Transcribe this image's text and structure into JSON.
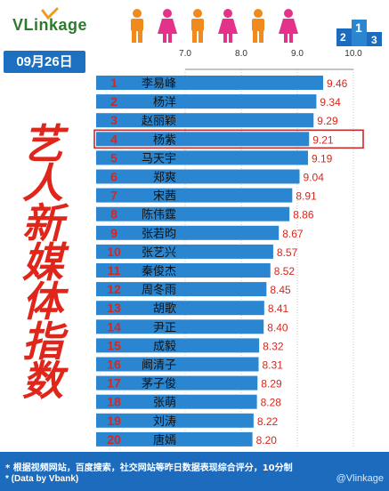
{
  "brand": {
    "logo_text": "VLinkage"
  },
  "date_label": "09月26日",
  "side_title_chars": [
    "艺",
    "人",
    "新",
    "媒",
    "体",
    "指",
    "数"
  ],
  "footer": {
    "note_line1": "* 根据视频网站，百度搜索，社交网站等昨日数据表现综合评分，10分制",
    "note_line2": "* (Data by Vbank)",
    "watermark": "@Vlinkage"
  },
  "colors": {
    "bar": "#2a86d0",
    "rank": "#d9261c",
    "value": "#d9261c",
    "highlight_box": "#cc2a2a",
    "footer_bg": "#1d6bbd",
    "title": "#e0251b"
  },
  "chart_data": {
    "type": "bar",
    "orientation": "horizontal",
    "x_ticks": [
      "7.0",
      "8.0",
      "9.0",
      "10.0"
    ],
    "xlim": [
      7.0,
      10.0
    ],
    "highlight_rank": 4,
    "rows": [
      {
        "rank": "1",
        "name": "李易峰",
        "value": 9.46,
        "label": "9.46"
      },
      {
        "rank": "2",
        "name": "杨洋",
        "value": 9.34,
        "label": "9.34"
      },
      {
        "rank": "3",
        "name": "赵丽颖",
        "value": 9.29,
        "label": "9.29"
      },
      {
        "rank": "4",
        "name": "杨紫",
        "value": 9.21,
        "label": "9.21"
      },
      {
        "rank": "5",
        "name": "马天宇",
        "value": 9.19,
        "label": "9.19"
      },
      {
        "rank": "6",
        "name": "郑爽",
        "value": 9.04,
        "label": "9.04"
      },
      {
        "rank": "7",
        "name": "宋茜",
        "value": 8.91,
        "label": "8.91"
      },
      {
        "rank": "8",
        "name": "陈伟霆",
        "value": 8.86,
        "label": "8.86"
      },
      {
        "rank": "9",
        "name": "张若昀",
        "value": 8.67,
        "label": "8.67"
      },
      {
        "rank": "10",
        "name": "张艺兴",
        "value": 8.57,
        "label": "8.57"
      },
      {
        "rank": "11",
        "name": "秦俊杰",
        "value": 8.52,
        "label": "8.52"
      },
      {
        "rank": "12",
        "name": "周冬雨",
        "value": 8.45,
        "label": "8.45"
      },
      {
        "rank": "13",
        "name": "胡歌",
        "value": 8.41,
        "label": "8.41"
      },
      {
        "rank": "14",
        "name": "尹正",
        "value": 8.4,
        "label": "8.40"
      },
      {
        "rank": "15",
        "name": "成毅",
        "value": 8.32,
        "label": "8.32"
      },
      {
        "rank": "16",
        "name": "阚清子",
        "value": 8.31,
        "label": "8.31"
      },
      {
        "rank": "17",
        "name": "茅子俊",
        "value": 8.29,
        "label": "8.29"
      },
      {
        "rank": "18",
        "name": "张萌",
        "value": 8.28,
        "label": "8.28"
      },
      {
        "rank": "19",
        "name": "刘涛",
        "value": 8.22,
        "label": "8.22"
      },
      {
        "rank": "20",
        "name": "唐嫣",
        "value": 8.2,
        "label": "8.20"
      }
    ]
  }
}
